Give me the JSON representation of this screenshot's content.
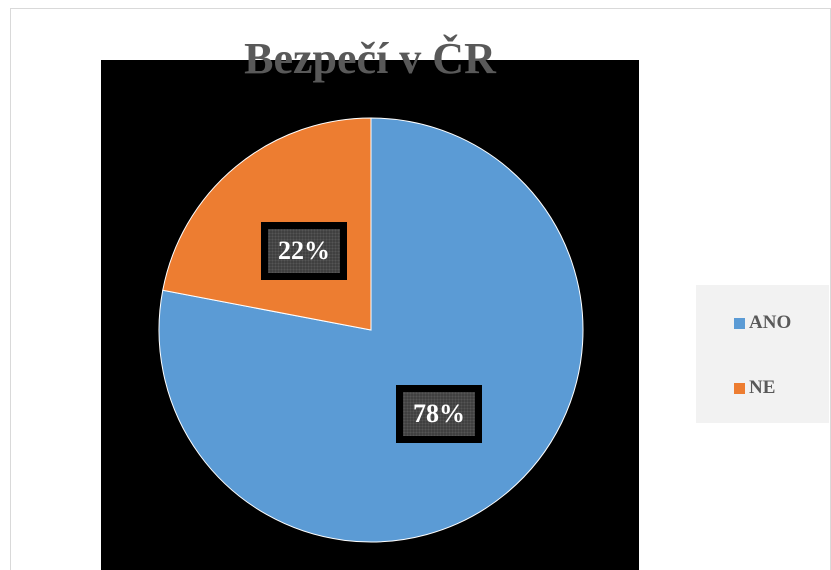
{
  "chart_data": {
    "type": "pie",
    "title": "Bezpečí v ČR",
    "categories": [
      "ANO",
      "NE"
    ],
    "values": [
      78,
      22
    ],
    "labels": [
      "78%",
      "22%"
    ],
    "colors": [
      "#5b9bd5",
      "#ed7d31"
    ],
    "plot_background": "#000000",
    "legend_position": "right"
  }
}
